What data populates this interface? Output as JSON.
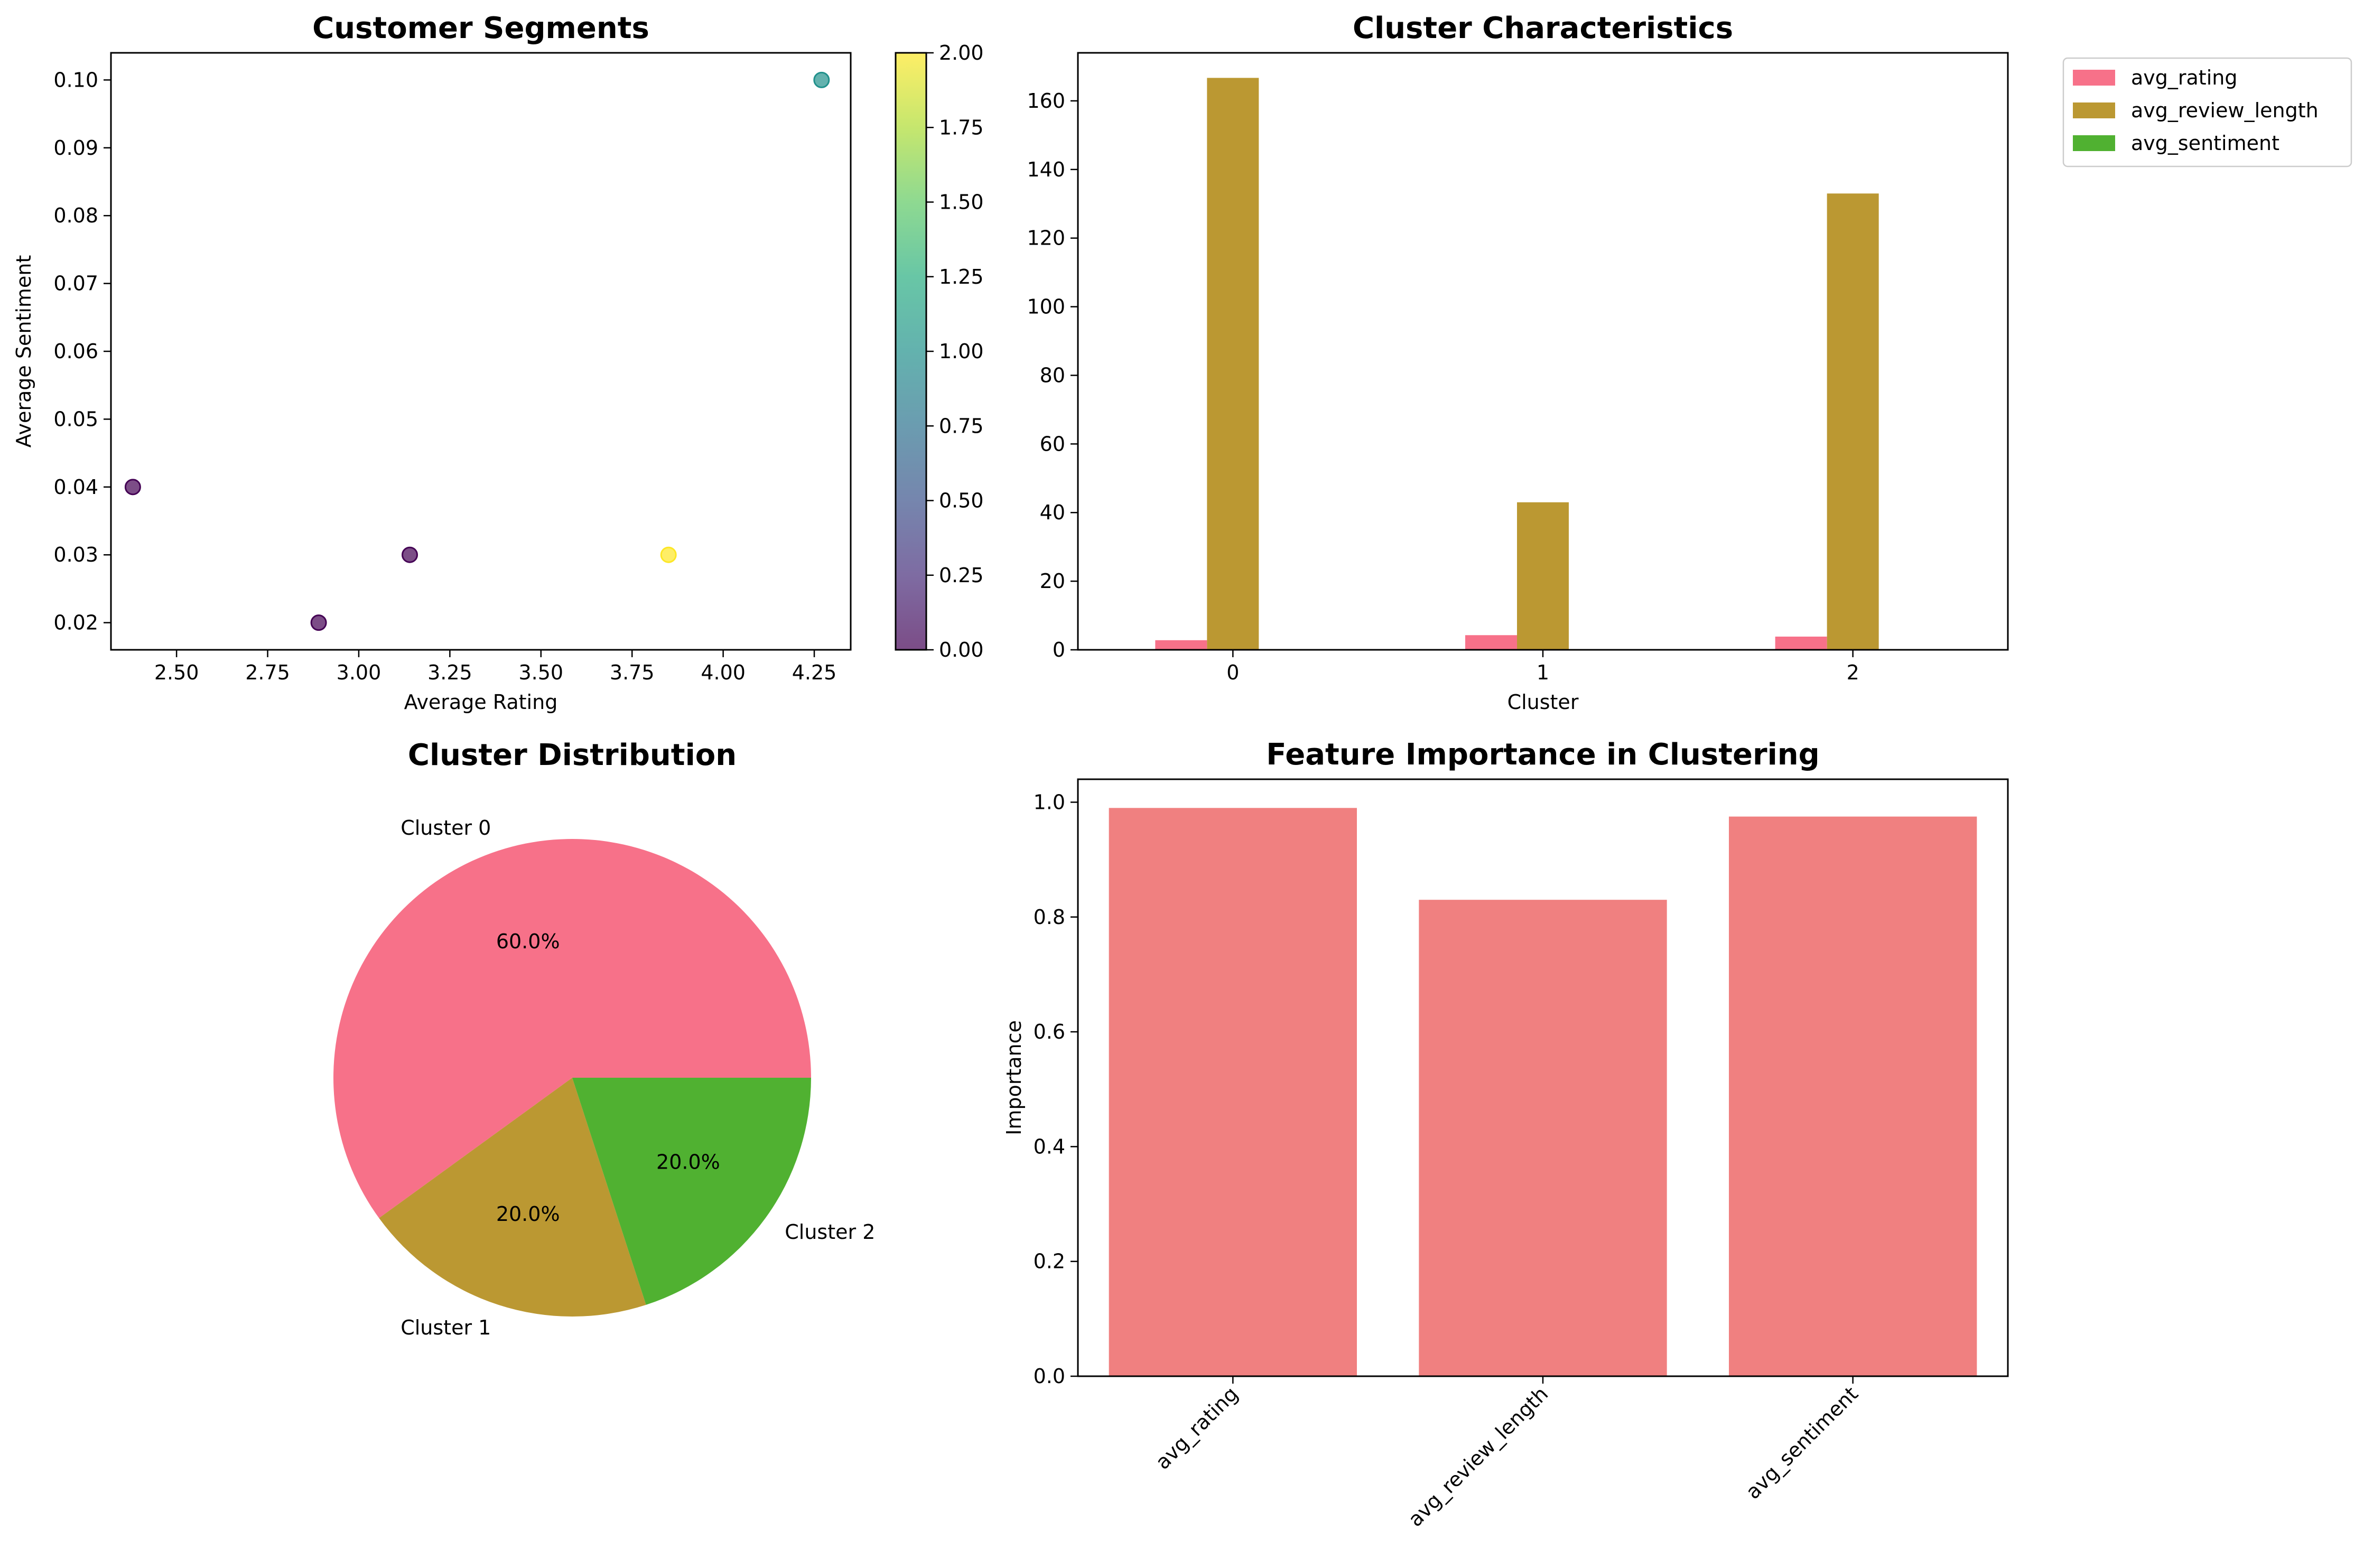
{
  "chart_data": [
    {
      "type": "scatter",
      "title": "Customer Segments",
      "xlabel": "Average Rating",
      "ylabel": "Average Sentiment",
      "xlim": [
        2.32,
        4.35
      ],
      "ylim": [
        0.016,
        0.104
      ],
      "xticks": [
        "2.50",
        "2.75",
        "3.00",
        "3.25",
        "3.50",
        "3.75",
        "4.00",
        "4.25"
      ],
      "xtick_values": [
        2.5,
        2.75,
        3.0,
        3.25,
        3.5,
        3.75,
        4.0,
        4.25
      ],
      "yticks": [
        "0.02",
        "0.03",
        "0.04",
        "0.05",
        "0.06",
        "0.07",
        "0.08",
        "0.09",
        "0.10"
      ],
      "ytick_values": [
        0.02,
        0.03,
        0.04,
        0.05,
        0.06,
        0.07,
        0.08,
        0.09,
        0.1
      ],
      "points": [
        {
          "x": 2.38,
          "y": 0.04,
          "cluster": 0
        },
        {
          "x": 2.89,
          "y": 0.02,
          "cluster": 0
        },
        {
          "x": 3.14,
          "y": 0.03,
          "cluster": 0
        },
        {
          "x": 3.85,
          "y": 0.03,
          "cluster": 2
        },
        {
          "x": 4.27,
          "y": 0.1,
          "cluster": 1
        }
      ],
      "colorbar": {
        "colormap": "viridis",
        "range": [
          0,
          2
        ],
        "ticks": [
          "0.00",
          "0.25",
          "0.50",
          "0.75",
          "1.00",
          "1.25",
          "1.50",
          "1.75",
          "2.00"
        ],
        "tick_values": [
          0,
          0.25,
          0.5,
          0.75,
          1.0,
          1.25,
          1.5,
          1.75,
          2.0
        ]
      },
      "grid": false
    },
    {
      "type": "bar",
      "title": "Cluster Characteristics",
      "xlabel": "Cluster",
      "ylabel": "",
      "categories": [
        "0",
        "1",
        "2"
      ],
      "ylim": [
        0,
        174
      ],
      "yticks": [
        "0",
        "20",
        "40",
        "60",
        "80",
        "100",
        "120",
        "140",
        "160"
      ],
      "ytick_values": [
        0,
        20,
        40,
        60,
        80,
        100,
        120,
        140,
        160
      ],
      "series": [
        {
          "name": "avg_rating",
          "color": "#f77189",
          "values": [
            2.8,
            4.27,
            3.85
          ]
        },
        {
          "name": "avg_review_length",
          "color": "#bb9832",
          "values": [
            166.7,
            43.0,
            133.0
          ]
        },
        {
          "name": "avg_sentiment",
          "color": "#50b131",
          "values": [
            0.03,
            0.1,
            0.03
          ]
        }
      ],
      "legend_placement": "outside-top-right",
      "grid": false
    },
    {
      "type": "pie",
      "title": "Cluster Distribution",
      "slices": [
        {
          "label": "Cluster 0",
          "value": 60.0,
          "pct_label": "60.0%",
          "color": "#f77189"
        },
        {
          "label": "Cluster 1",
          "value": 20.0,
          "pct_label": "20.0%",
          "color": "#bb9832"
        },
        {
          "label": "Cluster 2",
          "value": 20.0,
          "pct_label": "20.0%",
          "color": "#50b131"
        }
      ]
    },
    {
      "type": "bar",
      "title": "Feature Importance in Clustering",
      "xlabel": "",
      "ylabel": "Importance",
      "categories": [
        "avg_rating",
        "avg_review_length",
        "avg_sentiment"
      ],
      "values": [
        0.99,
        0.83,
        0.975
      ],
      "color": "#f08080",
      "ylim": [
        0,
        1.04
      ],
      "yticks": [
        "0.0",
        "0.2",
        "0.4",
        "0.6",
        "0.8",
        "1.0"
      ],
      "ytick_values": [
        0,
        0.2,
        0.4,
        0.6,
        0.8,
        1.0
      ],
      "xtick_rotation": 45,
      "grid": false
    }
  ]
}
